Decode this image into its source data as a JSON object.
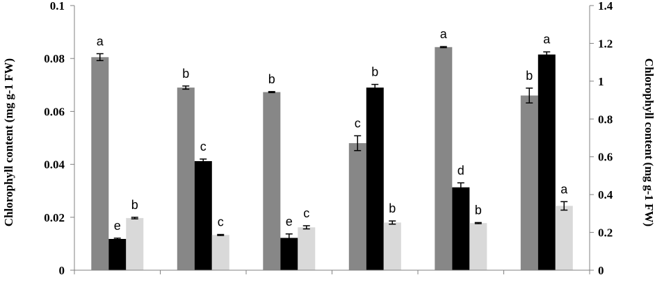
{
  "chart_data": {
    "type": "bar",
    "title": "",
    "xlabel": "",
    "categories": [
      "",
      "",
      "",
      "",
      "",
      ""
    ],
    "left_axis": {
      "label": "Chlorophyll content (mg g-1 FW)",
      "ylim": [
        0,
        0.1
      ],
      "ticks": [
        "0",
        "0.02",
        "0.04",
        "0.06",
        "0.08",
        "0.1"
      ]
    },
    "right_axis": {
      "label": "Chlorophyll content (mg g-1 FW)",
      "ylim": [
        0,
        1.4
      ],
      "ticks": [
        "0",
        "0.2",
        "0.4",
        "0.6",
        "0.8",
        "1",
        "1.2",
        "1.4"
      ]
    },
    "grid": false,
    "legend": "none",
    "series": [
      {
        "color": "#878787",
        "axis": "left",
        "values": [
          0.0805,
          0.069,
          0.0673,
          0.048,
          0.0843,
          0.066
        ],
        "errors": [
          0.0013,
          0.0006,
          0.0002,
          0.0028,
          0.0002,
          0.0028
        ],
        "labels": [
          "a",
          "b",
          "b",
          "c",
          "a",
          "b"
        ]
      },
      {
        "color": "#000000",
        "axis": "left",
        "values": [
          0.0118,
          0.0412,
          0.0122,
          0.069,
          0.0313,
          0.0815
        ],
        "errors": [
          0.0003,
          0.0008,
          0.0015,
          0.0012,
          0.0017,
          0.001
        ],
        "labels": [
          "e",
          "c",
          "e",
          "b",
          "d",
          "a"
        ]
      },
      {
        "color": "#d9d9d9",
        "axis": "left",
        "values": [
          0.0197,
          0.0133,
          0.0162,
          0.018,
          0.0178,
          0.0243
        ],
        "errors": [
          0.0003,
          0.0002,
          0.0006,
          0.0006,
          0.0002,
          0.0016
        ],
        "labels": [
          "b",
          "c",
          "c",
          "b",
          "b",
          "a"
        ]
      }
    ]
  }
}
